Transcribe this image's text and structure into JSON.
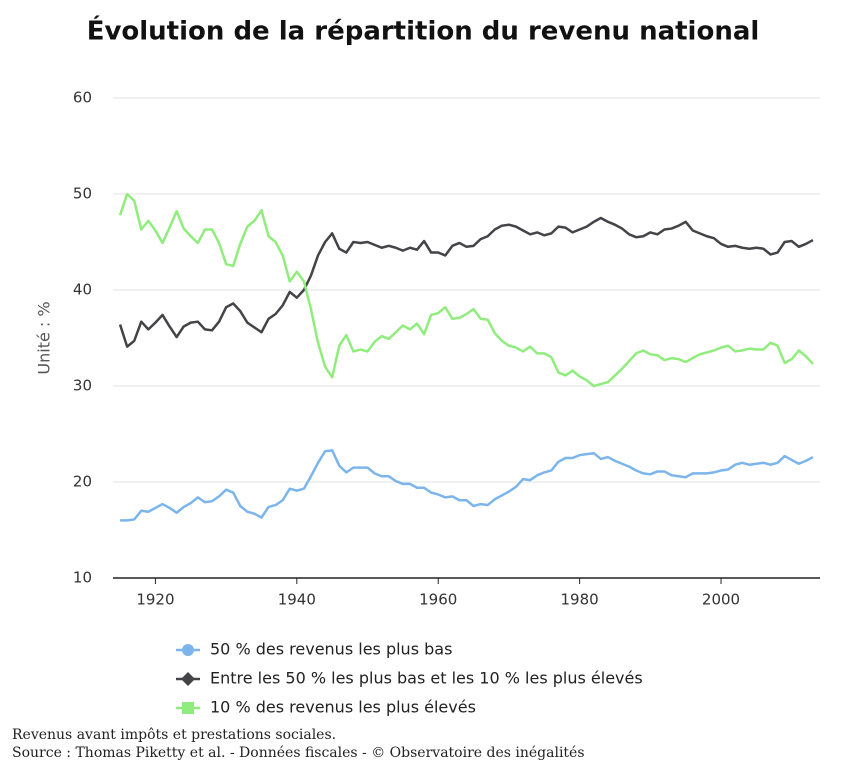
{
  "chart_data": {
    "type": "line",
    "title": "Évolution de la répartition du revenu national",
    "y_label": "Unité : %",
    "notes": [
      "Revenus avant impôts et prestations sociales.",
      "Source : Thomas Piketty et al. - Données fiscales - © Observatoire des inégalités"
    ],
    "x": [
      1915,
      1916,
      1917,
      1918,
      1919,
      1920,
      1921,
      1922,
      1923,
      1924,
      1925,
      1926,
      1927,
      1928,
      1929,
      1930,
      1931,
      1932,
      1933,
      1934,
      1935,
      1936,
      1937,
      1938,
      1939,
      1940,
      1941,
      1942,
      1943,
      1944,
      1945,
      1946,
      1947,
      1948,
      1949,
      1950,
      1951,
      1952,
      1953,
      1954,
      1955,
      1956,
      1957,
      1958,
      1959,
      1960,
      1961,
      1962,
      1963,
      1964,
      1965,
      1966,
      1967,
      1968,
      1969,
      1970,
      1971,
      1972,
      1973,
      1974,
      1975,
      1976,
      1977,
      1978,
      1979,
      1980,
      1981,
      1982,
      1983,
      1984,
      1985,
      1986,
      1987,
      1988,
      1989,
      1990,
      1991,
      1992,
      1993,
      1994,
      1995,
      1996,
      1997,
      1998,
      1999,
      2000,
      2001,
      2002,
      2003,
      2004,
      2005,
      2006,
      2007,
      2008,
      2009,
      2010,
      2011,
      2012,
      2013
    ],
    "series": [
      {
        "name": "50 % des revenus les plus bas",
        "color": "#7cb5ec",
        "marker": "circle",
        "values": [
          16.0,
          16.0,
          16.1,
          17.0,
          16.9,
          17.3,
          17.7,
          17.3,
          16.8,
          17.4,
          17.8,
          18.4,
          17.9,
          18.0,
          18.5,
          19.2,
          18.9,
          17.5,
          16.9,
          16.7,
          16.3,
          17.4,
          17.6,
          18.1,
          19.3,
          19.1,
          19.3,
          20.6,
          22.0,
          23.2,
          23.3,
          21.7,
          21.0,
          21.5,
          21.5,
          21.5,
          20.9,
          20.6,
          20.6,
          20.1,
          19.8,
          19.8,
          19.4,
          19.4,
          18.9,
          18.7,
          18.4,
          18.5,
          18.1,
          18.1,
          17.5,
          17.7,
          17.6,
          18.2,
          18.6,
          19.0,
          19.5,
          20.3,
          20.2,
          20.7,
          21.0,
          21.2,
          22.1,
          22.5,
          22.5,
          22.8,
          22.9,
          23.0,
          22.4,
          22.6,
          22.2,
          21.9,
          21.6,
          21.2,
          20.9,
          20.8,
          21.1,
          21.1,
          20.7,
          20.6,
          20.5,
          20.9,
          20.9,
          20.9,
          21.0,
          21.2,
          21.3,
          21.8,
          22.0,
          21.8,
          21.9,
          22.0,
          21.8,
          22.0,
          22.7,
          22.3,
          21.9,
          22.2,
          22.6
        ]
      },
      {
        "name": "Entre les 50 % les plus bas et les 10 % les plus élevés",
        "color": "#434348",
        "marker": "diamond",
        "values": [
          36.4,
          34.1,
          34.7,
          36.7,
          35.9,
          36.6,
          37.4,
          36.2,
          35.1,
          36.2,
          36.6,
          36.7,
          35.9,
          35.8,
          36.7,
          38.2,
          38.6,
          37.8,
          36.6,
          36.1,
          35.6,
          37.0,
          37.5,
          38.4,
          39.8,
          39.2,
          40.0,
          41.5,
          43.6,
          45.0,
          45.9,
          44.3,
          43.9,
          45.0,
          44.9,
          45.0,
          44.7,
          44.4,
          44.6,
          44.4,
          44.1,
          44.4,
          44.2,
          45.1,
          43.9,
          43.9,
          43.6,
          44.6,
          44.9,
          44.5,
          44.6,
          45.3,
          45.6,
          46.3,
          46.7,
          46.8,
          46.6,
          46.2,
          45.8,
          46.0,
          45.7,
          45.9,
          46.6,
          46.5,
          46.0,
          46.3,
          46.6,
          47.1,
          47.5,
          47.1,
          46.8,
          46.4,
          45.8,
          45.5,
          45.6,
          46.0,
          45.8,
          46.3,
          46.4,
          46.7,
          47.1,
          46.2,
          45.9,
          45.6,
          45.4,
          44.8,
          44.5,
          44.6,
          44.4,
          44.3,
          44.4,
          44.3,
          43.7,
          43.9,
          45.0,
          45.1,
          44.5,
          44.8,
          45.2
        ]
      },
      {
        "name": "10 % des revenus les plus élevés",
        "color": "#90ed7d",
        "marker": "square",
        "values": [
          47.8,
          50.0,
          49.3,
          46.3,
          47.2,
          46.2,
          44.9,
          46.5,
          48.2,
          46.4,
          45.6,
          44.9,
          46.3,
          46.3,
          44.9,
          42.7,
          42.5,
          44.8,
          46.6,
          47.2,
          48.3,
          45.6,
          45.0,
          43.6,
          40.9,
          41.9,
          40.9,
          38.0,
          34.5,
          32.0,
          30.9,
          34.2,
          35.3,
          33.6,
          33.8,
          33.6,
          34.6,
          35.2,
          34.9,
          35.6,
          36.3,
          35.9,
          36.5,
          35.4,
          37.4,
          37.6,
          38.2,
          37.0,
          37.1,
          37.5,
          38.0,
          37.0,
          36.9,
          35.5,
          34.7,
          34.2,
          34.0,
          33.6,
          34.1,
          33.4,
          33.4,
          33.0,
          31.4,
          31.1,
          31.6,
          31.0,
          30.6,
          30.0,
          30.2,
          30.4,
          31.1,
          31.8,
          32.6,
          33.4,
          33.7,
          33.3,
          33.2,
          32.7,
          32.9,
          32.8,
          32.5,
          32.9,
          33.3,
          33.5,
          33.7,
          34.0,
          34.2,
          33.6,
          33.7,
          33.9,
          33.8,
          33.8,
          34.5,
          34.2,
          32.4,
          32.8,
          33.7,
          33.1,
          32.3
        ]
      }
    ],
    "xlim": [
      1914,
      2014
    ],
    "xticks": [
      1920,
      1940,
      1960,
      1980,
      2000
    ],
    "ylim": [
      10,
      60
    ],
    "yticks": [
      10,
      20,
      30,
      40,
      50,
      60
    ],
    "grid": true
  }
}
